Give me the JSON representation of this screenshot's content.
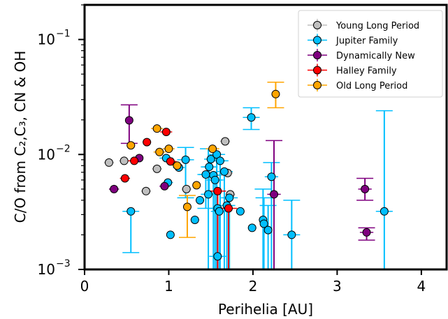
{
  "chart_data": {
    "type": "scatter",
    "xlabel": "Perihelia [AU]",
    "ylabel": "C/O from C₂,C₃, CN & OH",
    "xlim": [
      0,
      4.3
    ],
    "ylim": [
      0.001,
      0.2
    ],
    "yscale": "log",
    "grid": false,
    "legend_position": "top-right",
    "x_ticks": [
      "0",
      "1",
      "2",
      "3",
      "4"
    ],
    "y_ticks": [
      {
        "value": 0.001,
        "mantissa": "10",
        "exponent": "−3"
      },
      {
        "value": 0.01,
        "mantissa": "10",
        "exponent": "−2"
      },
      {
        "value": 0.1,
        "mantissa": "10",
        "exponent": "−1"
      }
    ],
    "series": [
      {
        "name": "Young Long Period",
        "color": "#bfbfbf",
        "error_color": "#bfbfbf",
        "points": [
          {
            "x": 0.29,
            "y": 0.0085,
            "xerr": 0.06,
            "ylo": 0.0085,
            "yhi": 0.0085
          },
          {
            "x": 0.47,
            "y": 0.0088,
            "xerr": 0.06,
            "ylo": 0.0088,
            "yhi": 0.0088
          },
          {
            "x": 0.86,
            "y": 0.0075,
            "xerr": 0.06,
            "ylo": 0.0075,
            "yhi": 0.0075
          },
          {
            "x": 0.73,
            "y": 0.0048,
            "xerr": 0.06,
            "ylo": 0.0048,
            "yhi": 0.0048
          },
          {
            "x": 1.21,
            "y": 0.005,
            "xerr": 0.06,
            "ylo": 0.005,
            "yhi": 0.005
          },
          {
            "x": 1.67,
            "y": 0.013,
            "xerr": 0.06,
            "ylo": 0.013,
            "yhi": 0.013
          },
          {
            "x": 1.7,
            "y": 0.0069,
            "xerr": 0.06,
            "ylo": 0.0069,
            "yhi": 0.0069
          },
          {
            "x": 1.73,
            "y": 0.0045,
            "xerr": 0.06,
            "ylo": 0.0045,
            "yhi": 0.0045
          }
        ]
      },
      {
        "name": "Jupiter Family",
        "color": "#00bfff",
        "error_color": "#00bfff",
        "points": [
          {
            "x": 0.55,
            "y": 0.0032,
            "xerr": 0.0,
            "ylo": 0.0014,
            "yhi": 0.0032
          },
          {
            "x": 1.02,
            "y": 0.002,
            "xerr": 0.0,
            "ylo": 0.002,
            "yhi": 0.002
          },
          {
            "x": 0.97,
            "y": 0.0093,
            "xerr": 0.08,
            "ylo": 0.0093,
            "yhi": 0.0093
          },
          {
            "x": 0.99,
            "y": 0.0057,
            "xerr": 0.06,
            "ylo": 0.0057,
            "yhi": 0.0057
          },
          {
            "x": 1.12,
            "y": 0.0077,
            "xerr": 0.07,
            "ylo": 0.0077,
            "yhi": 0.0077
          },
          {
            "x": 1.2,
            "y": 0.009,
            "xerr": 0.1,
            "ylo": 0.0042,
            "yhi": 0.0115
          },
          {
            "x": 1.31,
            "y": 0.0027,
            "xerr": 0.05,
            "ylo": 0.0027,
            "yhi": 0.0027
          },
          {
            "x": 1.37,
            "y": 0.004,
            "xerr": 0.05,
            "ylo": 0.004,
            "yhi": 0.004
          },
          {
            "x": 1.44,
            "y": 0.0067,
            "xerr": 0.08,
            "ylo": 0.0034,
            "yhi": 0.0067
          },
          {
            "x": 1.48,
            "y": 0.0078,
            "xerr": 0.08,
            "ylo": 0.0045,
            "yhi": 0.0078
          },
          {
            "x": 1.47,
            "y": 0.0045,
            "xerr": 0.08,
            "ylo": 0.001,
            "yhi": 0.0112
          },
          {
            "x": 1.5,
            "y": 0.0091,
            "xerr": 0.08,
            "ylo": 0.0091,
            "yhi": 0.0091
          },
          {
            "x": 1.53,
            "y": 0.0066,
            "xerr": 0.08,
            "ylo": 0.001,
            "yhi": 0.0066
          },
          {
            "x": 1.55,
            "y": 0.006,
            "xerr": 0.08,
            "ylo": 0.001,
            "yhi": 0.006
          },
          {
            "x": 1.57,
            "y": 0.01,
            "xerr": 0.08,
            "ylo": 0.001,
            "yhi": 0.01
          },
          {
            "x": 1.58,
            "y": 0.0034,
            "xerr": 0.07,
            "ylo": 0.001,
            "yhi": 0.0034
          },
          {
            "x": 1.6,
            "y": 0.0032,
            "xerr": 0.07,
            "ylo": 0.001,
            "yhi": 0.0032
          },
          {
            "x": 1.61,
            "y": 0.0088,
            "xerr": 0.07,
            "ylo": 0.001,
            "yhi": 0.0088
          },
          {
            "x": 1.58,
            "y": 0.0013,
            "xerr": 0.0,
            "ylo": 0.001,
            "yhi": 0.0013
          },
          {
            "x": 1.66,
            "y": 0.0071,
            "xerr": 0.07,
            "ylo": 0.001,
            "yhi": 0.0071
          },
          {
            "x": 1.69,
            "y": 0.0036,
            "xerr": 0.05,
            "ylo": 0.001,
            "yhi": 0.0036
          },
          {
            "x": 1.72,
            "y": 0.0042,
            "xerr": 0.05,
            "ylo": 0.001,
            "yhi": 0.0042
          },
          {
            "x": 1.85,
            "y": 0.0032,
            "xerr": 0.05,
            "ylo": 0.0032,
            "yhi": 0.0032
          },
          {
            "x": 1.98,
            "y": 0.021,
            "xerr": 0.1,
            "ylo": 0.0165,
            "yhi": 0.0255
          },
          {
            "x": 1.99,
            "y": 0.0023,
            "xerr": 0.05,
            "ylo": 0.0023,
            "yhi": 0.0023
          },
          {
            "x": 2.12,
            "y": 0.0027,
            "xerr": 0.04,
            "ylo": 0.001,
            "yhi": 0.005
          },
          {
            "x": 2.13,
            "y": 0.0025,
            "xerr": 0.04,
            "ylo": 0.001,
            "yhi": 0.0042
          },
          {
            "x": 2.18,
            "y": 0.0022,
            "xerr": 0.04,
            "ylo": 0.001,
            "yhi": 0.0036
          },
          {
            "x": 2.22,
            "y": 0.0064,
            "xerr": 0.08,
            "ylo": 0.001,
            "yhi": 0.0085
          },
          {
            "x": 2.46,
            "y": 0.002,
            "xerr": 0.1,
            "ylo": 0.001,
            "yhi": 0.004
          },
          {
            "x": 3.56,
            "y": 0.0032,
            "xerr": 0.1,
            "ylo": 0.001,
            "yhi": 0.024
          }
        ]
      },
      {
        "name": "Dynamically New",
        "color": "#7f007f",
        "error_color": "#7f007f",
        "points": [
          {
            "x": 0.53,
            "y": 0.0198,
            "xerr": 0.0,
            "ylo": 0.0125,
            "yhi": 0.027
          },
          {
            "x": 0.35,
            "y": 0.005,
            "xerr": 0.06,
            "ylo": 0.005,
            "yhi": 0.005
          },
          {
            "x": 0.65,
            "y": 0.0093,
            "xerr": 0.04,
            "ylo": 0.0093,
            "yhi": 0.0093
          },
          {
            "x": 0.95,
            "y": 0.0053,
            "xerr": 0.06,
            "ylo": 0.0053,
            "yhi": 0.0053
          },
          {
            "x": 2.25,
            "y": 0.0045,
            "xerr": 0.08,
            "ylo": 0.001,
            "yhi": 0.0132
          },
          {
            "x": 3.33,
            "y": 0.005,
            "xerr": 0.08,
            "ylo": 0.004,
            "yhi": 0.0062
          },
          {
            "x": 3.35,
            "y": 0.0021,
            "xerr": 0.08,
            "ylo": 0.0018,
            "yhi": 0.0023
          }
        ]
      },
      {
        "name": "Halley Family",
        "color": "#ff0000",
        "error_color": "#ff0000",
        "points": [
          {
            "x": 0.48,
            "y": 0.0062,
            "xerr": 0.06,
            "ylo": 0.0062,
            "yhi": 0.0062
          },
          {
            "x": 0.59,
            "y": 0.0088,
            "xerr": 0.07,
            "ylo": 0.0088,
            "yhi": 0.0088
          },
          {
            "x": 0.74,
            "y": 0.0128,
            "xerr": 0.05,
            "ylo": 0.0128,
            "yhi": 0.0128
          },
          {
            "x": 0.97,
            "y": 0.0157,
            "xerr": 0.07,
            "ylo": 0.0157,
            "yhi": 0.0157
          },
          {
            "x": 1.02,
            "y": 0.0087,
            "xerr": 0.07,
            "ylo": 0.0087,
            "yhi": 0.0087
          },
          {
            "x": 1.58,
            "y": 0.0048,
            "xerr": 0.07,
            "ylo": 0.001,
            "yhi": 0.0048
          },
          {
            "x": 1.71,
            "y": 0.0034,
            "xerr": 0.05,
            "ylo": 0.001,
            "yhi": 0.0034
          }
        ]
      },
      {
        "name": "Old Long Period",
        "color": "#ffa500",
        "error_color": "#ffa500",
        "points": [
          {
            "x": 0.55,
            "y": 0.012,
            "xerr": 0.05,
            "ylo": 0.012,
            "yhi": 0.012
          },
          {
            "x": 0.86,
            "y": 0.0168,
            "xerr": 0.07,
            "ylo": 0.0168,
            "yhi": 0.0168
          },
          {
            "x": 0.89,
            "y": 0.0105,
            "xerr": 0.07,
            "ylo": 0.0105,
            "yhi": 0.0105
          },
          {
            "x": 1.0,
            "y": 0.0112,
            "xerr": 0.07,
            "ylo": 0.0112,
            "yhi": 0.0112
          },
          {
            "x": 1.1,
            "y": 0.008,
            "xerr": 0.06,
            "ylo": 0.008,
            "yhi": 0.008
          },
          {
            "x": 1.22,
            "y": 0.0035,
            "xerr": 0.0,
            "ylo": 0.0019,
            "yhi": 0.0044
          },
          {
            "x": 1.33,
            "y": 0.0054,
            "xerr": 0.05,
            "ylo": 0.0054,
            "yhi": 0.0054
          },
          {
            "x": 1.52,
            "y": 0.0112,
            "xerr": 0.08,
            "ylo": 0.0112,
            "yhi": 0.0112
          },
          {
            "x": 2.27,
            "y": 0.0335,
            "xerr": 0.0,
            "ylo": 0.0255,
            "yhi": 0.0425
          }
        ]
      }
    ]
  }
}
